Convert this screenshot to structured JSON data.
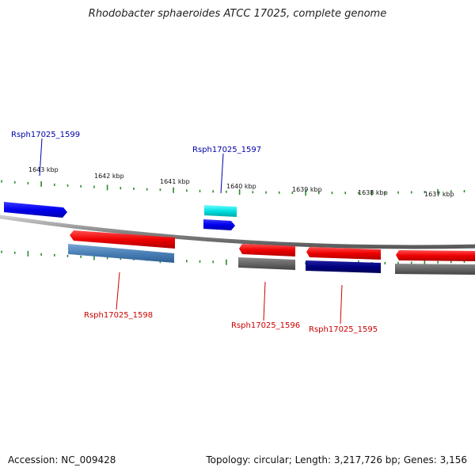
{
  "title": "Rhodobacter sphaeroides ATCC 17025, complete genome",
  "footer": {
    "accession": "Accession: NC_009428",
    "stats": "Topology: circular; Length: 3,217,726 bp; Genes: 3,156"
  },
  "scale": {
    "units": "kbp",
    "ticks": [
      {
        "label": "1643 kbp"
      },
      {
        "label": "1642 kbp"
      },
      {
        "label": "1641 kbp"
      },
      {
        "label": "1640 kbp"
      },
      {
        "label": "1639 kbp"
      },
      {
        "label": "1638 kbp"
      },
      {
        "label": "1637 kbp"
      }
    ]
  },
  "genes": [
    {
      "label": "Rsph17025_1599",
      "color": "#0000aa"
    },
    {
      "label": "Rsph17025_1597",
      "color": "#0000aa"
    },
    {
      "label": "Rsph17025_1598",
      "color": "#cc0000"
    },
    {
      "label": "Rsph17025_1596",
      "color": "#cc0000"
    },
    {
      "label": "Rsph17025_1595",
      "color": "#cc0000"
    }
  ],
  "colors": {
    "forward_cds": "#0000ff",
    "reverse_cds": "#ff0000",
    "forward_feature": "#00e0e0",
    "reverse_feature_steel": "#4a7fb5",
    "reverse_feature_gray": "#666666",
    "reverse_feature_navy": "#000080",
    "backbone": "#888888",
    "tick": "#2a8a2a"
  }
}
